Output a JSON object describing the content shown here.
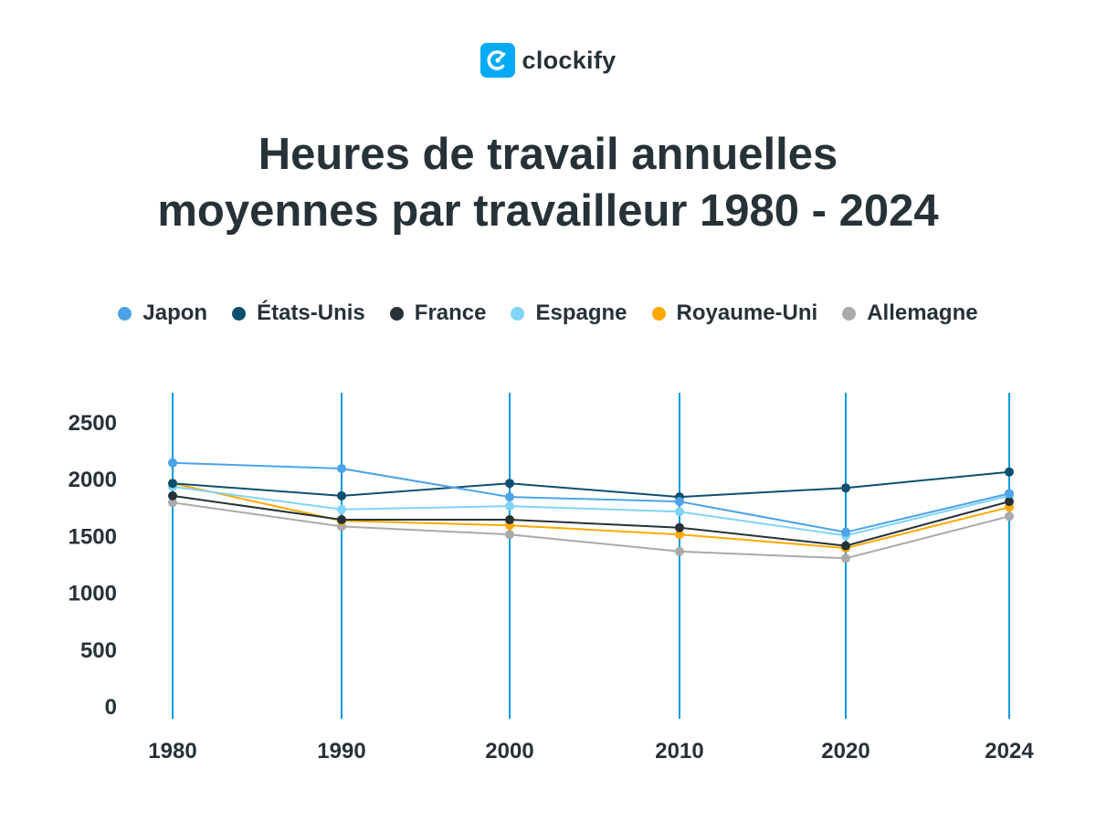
{
  "logo": {
    "text": "clockify",
    "icon": "clockify-logo-icon",
    "color": "#03a9f4"
  },
  "chart_data": {
    "type": "line",
    "title_lines": [
      "Heures de travail annuelles",
      "moyennes par travailleur 1980 - 2024"
    ],
    "xlabel": "",
    "ylabel": "",
    "categories": [
      "1980",
      "1990",
      "2000",
      "2010",
      "2020",
      "2024"
    ],
    "ylim": [
      0,
      2500
    ],
    "yticks": [
      0,
      500,
      1000,
      1500,
      2000,
      2500
    ],
    "legend_position": "top",
    "vertical_gridlines": true,
    "gridline_color": "#039be5",
    "series": [
      {
        "name": "Japon",
        "color": "#4da3e8",
        "values": [
          2140,
          2090,
          1840,
          1800,
          1530,
          1870
        ]
      },
      {
        "name": "États-Unis",
        "color": "#0d4f6e",
        "values": [
          1960,
          1850,
          1960,
          1840,
          1920,
          2060
        ]
      },
      {
        "name": "France",
        "color": "#263238",
        "values": [
          1850,
          1640,
          1640,
          1570,
          1410,
          1800
        ]
      },
      {
        "name": "Espagne",
        "color": "#80d4f7",
        "values": [
          1930,
          1730,
          1760,
          1710,
          1500,
          1850
        ]
      },
      {
        "name": "Royaume-Uni",
        "color": "#ffa800",
        "values": [
          1960,
          1630,
          1590,
          1510,
          1390,
          1750
        ]
      },
      {
        "name": "Allemagne",
        "color": "#aaaaaa",
        "values": [
          1790,
          1580,
          1510,
          1360,
          1300,
          1670
        ]
      }
    ]
  }
}
